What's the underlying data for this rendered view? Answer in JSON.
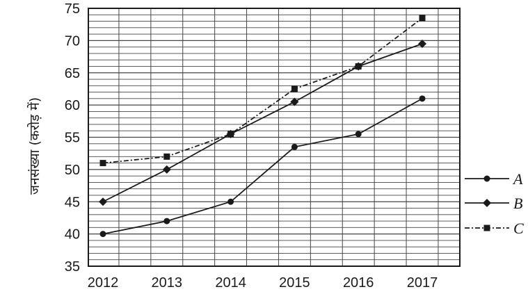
{
  "chart_data": {
    "type": "line",
    "title": "",
    "xlabel": "",
    "ylabel": "जनसंख्या (करोड़ में)",
    "categories": [
      "2012",
      "2013",
      "2014",
      "2015",
      "2016",
      "2017"
    ],
    "ylim": [
      35,
      75
    ],
    "yticks": [
      "35",
      "40",
      "45",
      "50",
      "55",
      "60",
      "65",
      "70",
      "75"
    ],
    "grid": true,
    "legend_position": "right",
    "series": [
      {
        "name": "A",
        "marker": "circle",
        "line_style": "solid",
        "values": [
          40,
          42,
          45,
          53.5,
          55.5,
          61
        ]
      },
      {
        "name": "B",
        "marker": "diamond",
        "line_style": "solid",
        "values": [
          45,
          50,
          55.5,
          60.5,
          66,
          69.5
        ]
      },
      {
        "name": "C",
        "marker": "square",
        "line_style": "dash-dot",
        "values": [
          51,
          52,
          55.5,
          62.5,
          66,
          73.5
        ]
      }
    ],
    "colors": {
      "ink": "#1a1a1a",
      "grid": "#444444"
    }
  }
}
